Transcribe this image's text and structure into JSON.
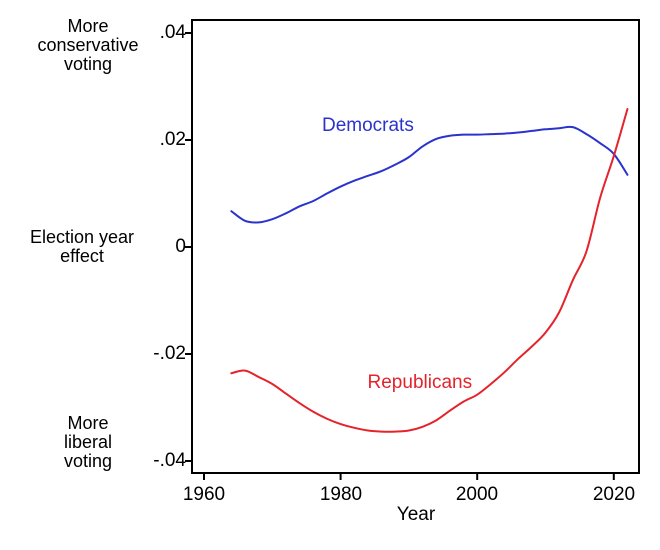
{
  "figure": {
    "background": "#ffffff",
    "frame_color": "#000000"
  },
  "annotations": {
    "top_left": [
      "More",
      "conservative",
      "voting"
    ],
    "mid_left": [
      "Election year",
      "effect"
    ],
    "bottom_left": [
      "More",
      "liberal",
      "voting"
    ]
  },
  "chart_data": {
    "type": "line",
    "title": "",
    "xlabel": "Year",
    "ylabel": "Election year effect",
    "xlim": [
      1958,
      2024
    ],
    "ylim": [
      -0.042,
      0.042
    ],
    "grid": false,
    "legend": "inline-labels",
    "x_ticks": [
      1960,
      1980,
      2000,
      2020
    ],
    "x_tick_labels": [
      "1960",
      "1980",
      "2000",
      "2020"
    ],
    "y_ticks": [
      0.04,
      0.02,
      0,
      -0.02,
      -0.04
    ],
    "y_tick_labels": [
      ".04",
      ".02",
      "0",
      "-.02",
      "-.04"
    ],
    "x": [
      1964,
      1966,
      1968,
      1970,
      1972,
      1974,
      1976,
      1978,
      1980,
      1982,
      1984,
      1986,
      1988,
      1990,
      1992,
      1994,
      1996,
      1998,
      2000,
      2002,
      2004,
      2006,
      2008,
      2010,
      2012,
      2014,
      2016,
      2018,
      2020,
      2022
    ],
    "series": [
      {
        "name": "Democrats",
        "color": "#2b33cd",
        "label_pos": {
          "year": 1984,
          "value": 0.0226
        },
        "values": [
          0.0067,
          0.0049,
          0.0046,
          0.0052,
          0.0063,
          0.0076,
          0.0086,
          0.01,
          0.0113,
          0.0124,
          0.0133,
          0.0142,
          0.0154,
          0.0168,
          0.0188,
          0.0202,
          0.0208,
          0.021,
          0.021,
          0.0211,
          0.0212,
          0.0214,
          0.0217,
          0.022,
          0.0222,
          0.0224,
          0.0211,
          0.0194,
          0.0174,
          0.0135
        ]
      },
      {
        "name": "Republicans",
        "color": "#e4232b",
        "label_pos": {
          "year": 1991.6,
          "value": -0.0254
        },
        "values": [
          -0.0236,
          -0.0231,
          -0.0243,
          -0.0256,
          -0.0274,
          -0.0292,
          -0.0308,
          -0.0321,
          -0.0331,
          -0.0338,
          -0.0343,
          -0.0345,
          -0.0345,
          -0.0343,
          -0.0336,
          -0.0324,
          -0.0306,
          -0.0289,
          -0.0276,
          -0.0256,
          -0.0234,
          -0.0209,
          -0.0186,
          -0.016,
          -0.0122,
          -0.0062,
          -0.0008,
          0.0092,
          0.017,
          0.0258
        ]
      }
    ]
  }
}
